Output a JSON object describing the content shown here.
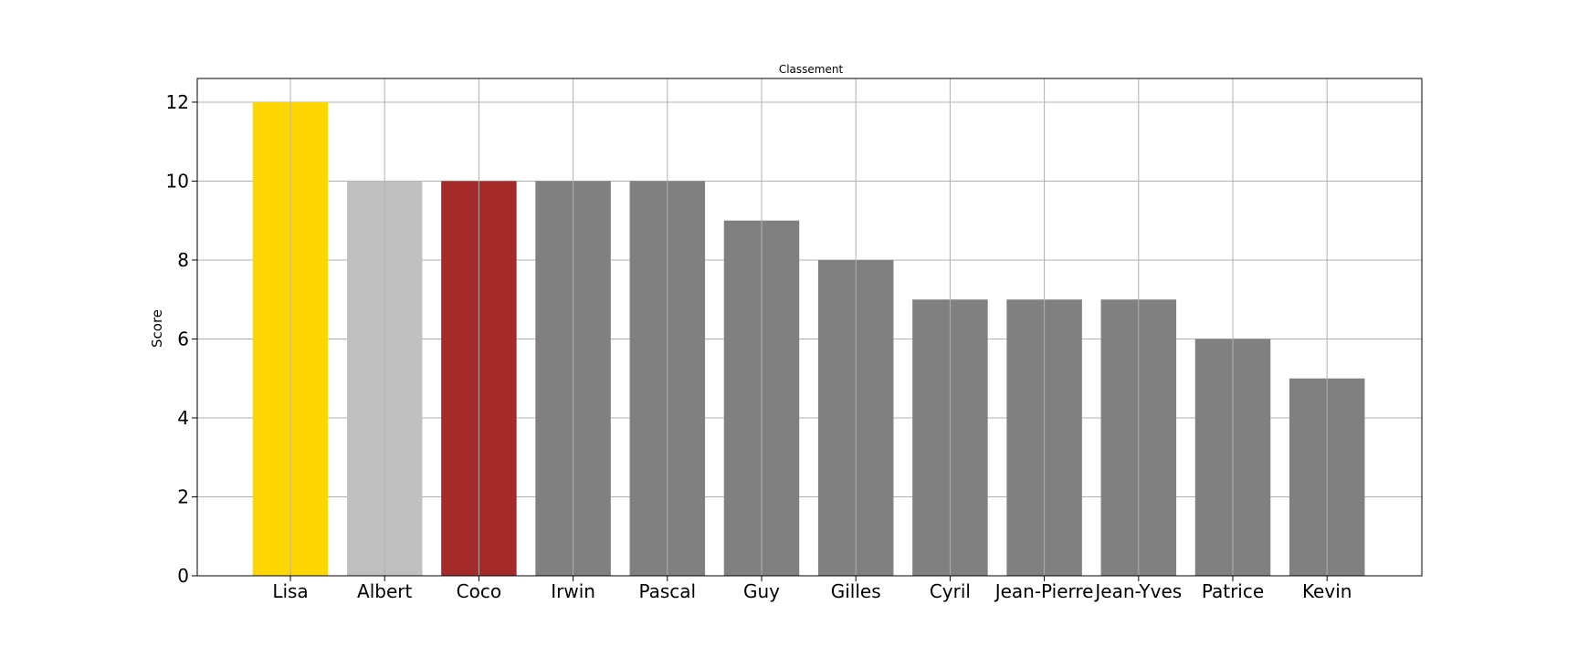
{
  "chart_data": {
    "type": "bar",
    "title": "Classement",
    "xlabel": "",
    "ylabel": "Score",
    "categories": [
      "Lisa",
      "Albert",
      "Coco",
      "Irwin",
      "Pascal",
      "Guy",
      "Gilles",
      "Cyril",
      "Jean-Pierre",
      "Jean-Yves",
      "Patrice",
      "Kevin"
    ],
    "values": [
      12,
      10,
      10,
      10,
      10,
      9,
      8,
      7,
      7,
      7,
      6,
      5
    ],
    "colors": [
      "#ffd700",
      "#c0c0c0",
      "#a52a2a",
      "#808080",
      "#808080",
      "#808080",
      "#808080",
      "#808080",
      "#808080",
      "#808080",
      "#808080",
      "#808080"
    ],
    "ylim": [
      0,
      12.6
    ],
    "yticks": [
      0,
      2,
      4,
      6,
      8,
      10,
      12
    ],
    "grid": true,
    "legend": "none"
  }
}
